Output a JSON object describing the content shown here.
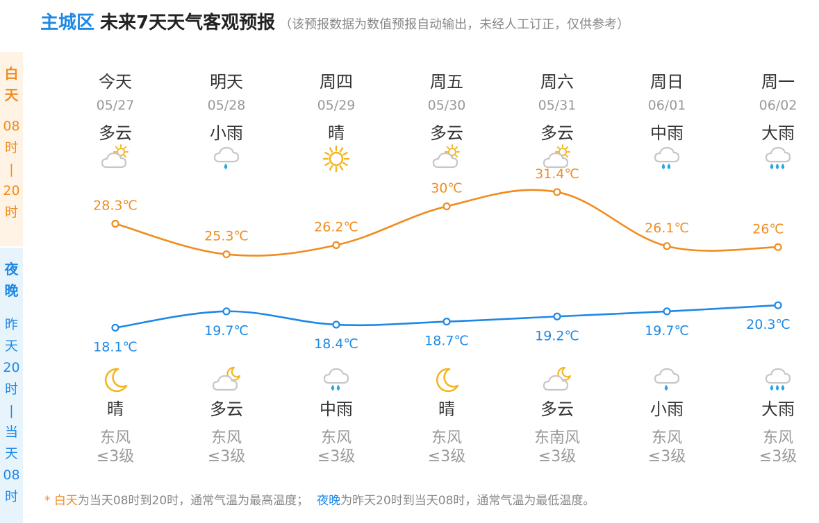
{
  "header": {
    "city": "主城区",
    "title": "未来7天天气客观预报",
    "note": "（该预报数据为数值预报自动输出，未经人工订正，仅供参考）"
  },
  "sidebar": {
    "day_label": [
      "白",
      "天"
    ],
    "day_range": [
      "08",
      "时",
      "|",
      "20",
      "时"
    ],
    "night_label": [
      "夜",
      "晚"
    ],
    "night_range": [
      "昨",
      "天",
      "20",
      "时",
      "|",
      "当",
      "天",
      "08",
      "时"
    ]
  },
  "days": [
    {
      "name": "今天",
      "date": "05/27",
      "day_weather": "多云",
      "day_icon": "partly-cloudy-day-icon",
      "high": "28.3℃",
      "low": "18.1℃",
      "night_icon": "moon-icon",
      "night_weather": "晴",
      "wind": "东风",
      "wind_level": "≤3级"
    },
    {
      "name": "明天",
      "date": "05/28",
      "day_weather": "小雨",
      "day_icon": "light-rain-icon",
      "high": "25.3℃",
      "low": "19.7℃",
      "night_icon": "partly-cloudy-night-icon",
      "night_weather": "多云",
      "wind": "东风",
      "wind_level": "≤3级"
    },
    {
      "name": "周四",
      "date": "05/29",
      "day_weather": "晴",
      "day_icon": "sun-icon",
      "high": "26.2℃",
      "low": "18.4℃",
      "night_icon": "moderate-rain-icon",
      "night_weather": "中雨",
      "wind": "东风",
      "wind_level": "≤3级"
    },
    {
      "name": "周五",
      "date": "05/30",
      "day_weather": "多云",
      "day_icon": "partly-cloudy-day-icon",
      "high": "30℃",
      "low": "18.7℃",
      "night_icon": "moon-icon",
      "night_weather": "晴",
      "wind": "东风",
      "wind_level": "≤3级"
    },
    {
      "name": "周六",
      "date": "05/31",
      "day_weather": "多云",
      "day_icon": "partly-cloudy-day-icon",
      "high": "31.4℃",
      "low": "19.2℃",
      "night_icon": "partly-cloudy-night-icon",
      "night_weather": "多云",
      "wind": "东南风",
      "wind_level": "≤3级"
    },
    {
      "name": "周日",
      "date": "06/01",
      "day_weather": "中雨",
      "day_icon": "moderate-rain-icon",
      "high": "26.1℃",
      "low": "19.7℃",
      "night_icon": "light-rain-icon",
      "night_weather": "小雨",
      "wind": "东风",
      "wind_level": "≤3级"
    },
    {
      "name": "周一",
      "date": "06/02",
      "day_weather": "大雨",
      "day_icon": "heavy-rain-icon",
      "high": "26℃",
      "low": "20.3℃",
      "night_icon": "heavy-rain-icon",
      "night_weather": "大雨",
      "wind": "东风",
      "wind_level": "≤3级"
    }
  ],
  "chart_data": {
    "type": "line",
    "categories": [
      "05/27",
      "05/28",
      "05/29",
      "05/30",
      "05/31",
      "06/01",
      "06/02"
    ],
    "series": [
      {
        "values": [
          28.3,
          25.3,
          26.2,
          30,
          31.4,
          26.1,
          26
        ],
        "color": "#f08c1e"
      },
      {
        "values": [
          18.1,
          19.7,
          18.4,
          18.7,
          19.2,
          19.7,
          20.3
        ],
        "color": "#1e88e5"
      }
    ]
  },
  "footer": {
    "star": "* ",
    "day_term": "白天",
    "day_text": "为当天08时到20时，通常气温为最高温度；",
    "night_term": "夜晚",
    "night_text": "为昨天20时到当天08时，通常气温为最低温度。"
  },
  "colors": {
    "day_accent": "#f08c1e",
    "night_accent": "#1e88e5",
    "cloud": "#c7c7c7",
    "sun": "#f5b521",
    "rain": "#29a8e0"
  }
}
